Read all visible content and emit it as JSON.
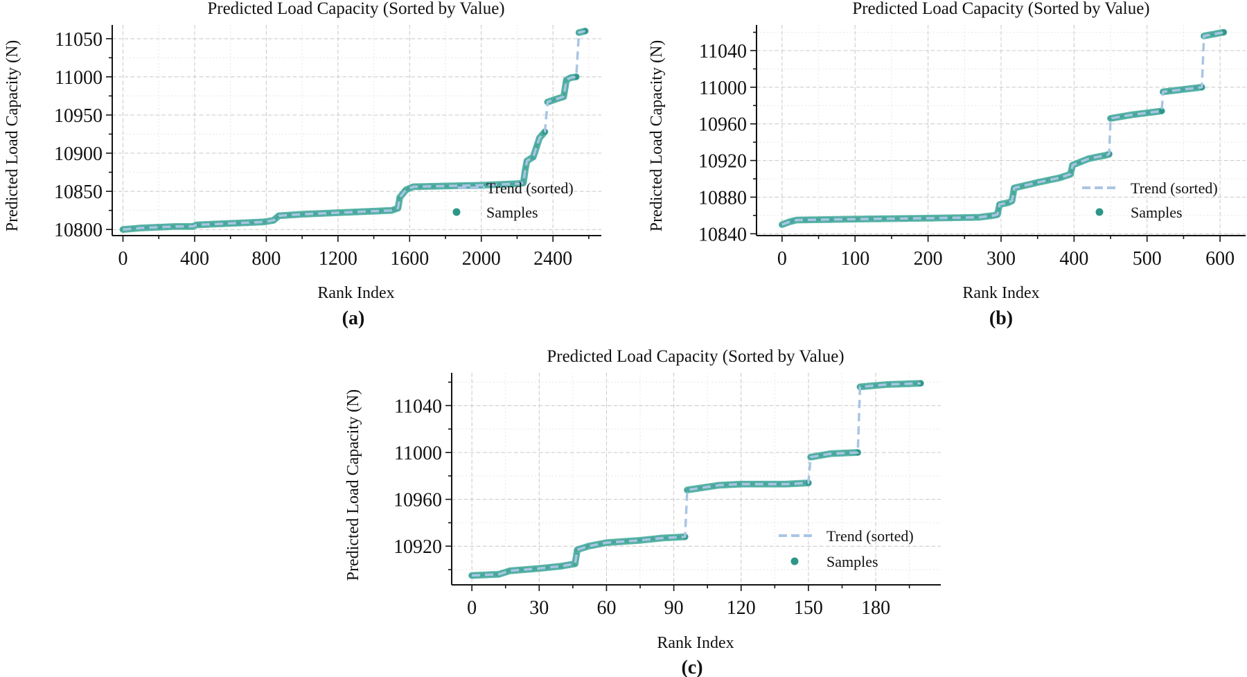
{
  "colors": {
    "trend": "#a9c5e4",
    "samples": "#2e9688",
    "samples_edge": "#5fb8ab"
  },
  "chart_data": [
    {
      "type": "scatter",
      "panel_label": "(a)",
      "title": "Predicted Load Capacity (Sorted by Value)",
      "xlabel": "Rank Index",
      "ylabel": "Predicted Load Capacity (N)",
      "xlim": [
        -60,
        2670
      ],
      "ylim": [
        10792,
        11068
      ],
      "xticks": [
        0,
        400,
        800,
        1200,
        1600,
        2000,
        2400
      ],
      "yticks": [
        10800,
        10850,
        10900,
        10950,
        11000,
        11050
      ],
      "legend": {
        "location": "center-right",
        "entries": [
          "Trend (sorted)",
          "Samples"
        ]
      },
      "series": [
        {
          "name": "Samples",
          "points": [
            [
              0,
              10800
            ],
            [
              100,
              10802
            ],
            [
              200,
              10803
            ],
            [
              300,
              10804
            ],
            [
              390,
              10804
            ],
            [
              410,
              10806
            ],
            [
              500,
              10807
            ],
            [
              600,
              10808
            ],
            [
              700,
              10809
            ],
            [
              790,
              10810
            ],
            [
              840,
              10812
            ],
            [
              870,
              10818
            ],
            [
              1000,
              10820
            ],
            [
              1200,
              10822
            ],
            [
              1400,
              10824
            ],
            [
              1500,
              10825
            ],
            [
              1535,
              10828
            ],
            [
              1545,
              10842
            ],
            [
              1580,
              10852
            ],
            [
              1620,
              10856
            ],
            [
              1800,
              10857
            ],
            [
              2000,
              10858
            ],
            [
              2200,
              10860
            ],
            [
              2235,
              10861
            ],
            [
              2245,
              10878
            ],
            [
              2255,
              10890
            ],
            [
              2290,
              10895
            ],
            [
              2325,
              10920
            ],
            [
              2355,
              10928
            ],
            [
              2370,
              10967
            ],
            [
              2420,
              10971
            ],
            [
              2460,
              10974
            ],
            [
              2475,
              10996
            ],
            [
              2500,
              10999
            ],
            [
              2530,
              11000
            ],
            [
              2545,
              11058
            ],
            [
              2580,
              11060
            ]
          ]
        }
      ]
    },
    {
      "type": "scatter",
      "panel_label": "(b)",
      "title": "Predicted Load Capacity (Sorted by Value)",
      "xlabel": "Rank Index",
      "ylabel": "Predicted Load Capacity (N)",
      "xlim": [
        -35,
        635
      ],
      "ylim": [
        10838,
        11068
      ],
      "xticks": [
        0,
        100,
        200,
        300,
        400,
        500,
        600
      ],
      "yticks": [
        10840,
        10880,
        10920,
        10960,
        11000,
        11040
      ],
      "legend": {
        "location": "center-right",
        "entries": [
          "Trend (sorted)",
          "Samples"
        ]
      },
      "series": [
        {
          "name": "Samples",
          "points": [
            [
              0,
              10850
            ],
            [
              10,
              10853
            ],
            [
              20,
              10855
            ],
            [
              100,
              10856
            ],
            [
              200,
              10857
            ],
            [
              270,
              10858
            ],
            [
              290,
              10860
            ],
            [
              295,
              10861
            ],
            [
              298,
              10872
            ],
            [
              310,
              10874
            ],
            [
              315,
              10876
            ],
            [
              318,
              10890
            ],
            [
              350,
              10896
            ],
            [
              380,
              10901
            ],
            [
              395,
              10905
            ],
            [
              398,
              10915
            ],
            [
              420,
              10922
            ],
            [
              445,
              10926
            ],
            [
              448,
              10927
            ],
            [
              450,
              10966
            ],
            [
              480,
              10970
            ],
            [
              520,
              10974
            ],
            [
              522,
              10995
            ],
            [
              575,
              11000
            ],
            [
              578,
              11056
            ],
            [
              605,
              11060
            ]
          ]
        }
      ]
    },
    {
      "type": "scatter",
      "panel_label": "(c)",
      "title": "Predicted Load Capacity (Sorted by Value)",
      "xlabel": "Rank Index",
      "ylabel": "Predicted Load Capacity (N)",
      "xlim": [
        -9,
        209
      ],
      "ylim": [
        10887,
        11068
      ],
      "xticks": [
        0,
        30,
        60,
        90,
        120,
        150,
        180
      ],
      "yticks": [
        10920,
        10960,
        11000,
        11040
      ],
      "legend": {
        "location": "center-right",
        "entries": [
          "Trend (sorted)",
          "Samples"
        ]
      },
      "series": [
        {
          "name": "Samples",
          "points": [
            [
              0,
              10895
            ],
            [
              12,
              10896
            ],
            [
              17,
              10899
            ],
            [
              30,
              10901
            ],
            [
              40,
              10903
            ],
            [
              46,
              10905
            ],
            [
              47,
              10917
            ],
            [
              52,
              10920
            ],
            [
              60,
              10923
            ],
            [
              75,
              10925
            ],
            [
              85,
              10927
            ],
            [
              95,
              10928
            ],
            [
              96,
              10968
            ],
            [
              110,
              10972
            ],
            [
              120,
              10973
            ],
            [
              140,
              10973
            ],
            [
              150,
              10974
            ],
            [
              151,
              10996
            ],
            [
              160,
              10999
            ],
            [
              172,
              11000
            ],
            [
              173,
              11056
            ],
            [
              185,
              11058
            ],
            [
              200,
              11059
            ]
          ]
        }
      ]
    }
  ]
}
